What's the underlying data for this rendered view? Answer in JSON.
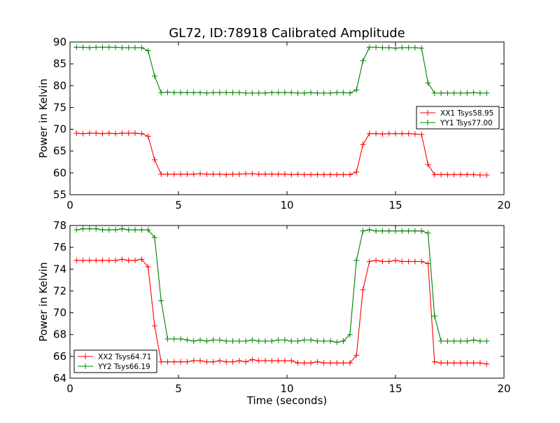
{
  "figure": {
    "title": "GL72, ID:78918 Calibrated Amplitude"
  },
  "chart_data": [
    {
      "type": "line",
      "title": "GL72, ID:78918 Calibrated Amplitude",
      "xlabel": "",
      "ylabel": "Power in Kelvin",
      "xlim": [
        0,
        20
      ],
      "ylim": [
        55,
        90
      ],
      "xticks": [
        0,
        5,
        10,
        15,
        20
      ],
      "yticks": [
        55,
        60,
        65,
        70,
        75,
        80,
        85,
        90
      ],
      "grid": false,
      "legend_position": "center-right",
      "marker": "+",
      "x": [
        0.3,
        0.6,
        0.9,
        1.2,
        1.5,
        1.8,
        2.1,
        2.4,
        2.7,
        3.0,
        3.3,
        3.6,
        3.9,
        4.2,
        4.5,
        4.8,
        5.1,
        5.4,
        5.7,
        6.0,
        6.3,
        6.6,
        6.9,
        7.2,
        7.5,
        7.8,
        8.1,
        8.4,
        8.7,
        9.0,
        9.3,
        9.6,
        9.9,
        10.2,
        10.5,
        10.8,
        11.1,
        11.4,
        11.7,
        12.0,
        12.3,
        12.6,
        12.9,
        13.2,
        13.5,
        13.8,
        14.1,
        14.4,
        14.7,
        15.0,
        15.3,
        15.6,
        15.9,
        16.2,
        16.5,
        16.8,
        17.1,
        17.4,
        17.7,
        18.0,
        18.3,
        18.6,
        18.9,
        19.2
      ],
      "series": [
        {
          "name": "XX1 Tsys58.95",
          "color": "#ff0000",
          "values": [
            69.1,
            69.0,
            69.1,
            69.1,
            69.0,
            69.1,
            69.0,
            69.1,
            69.1,
            69.1,
            69.0,
            68.4,
            63.0,
            59.7,
            59.7,
            59.7,
            59.7,
            59.7,
            59.7,
            59.8,
            59.7,
            59.7,
            59.7,
            59.6,
            59.7,
            59.7,
            59.8,
            59.8,
            59.7,
            59.7,
            59.7,
            59.7,
            59.7,
            59.6,
            59.7,
            59.6,
            59.6,
            59.6,
            59.6,
            59.6,
            59.6,
            59.6,
            59.6,
            60.2,
            66.5,
            69.0,
            69.0,
            68.9,
            69.0,
            69.0,
            69.0,
            69.0,
            68.9,
            68.8,
            61.9,
            59.6,
            59.6,
            59.6,
            59.6,
            59.6,
            59.6,
            59.6,
            59.5,
            59.5
          ]
        },
        {
          "name": "YY1 Tsys77.00",
          "color": "#008000",
          "values": [
            88.8,
            88.8,
            88.7,
            88.8,
            88.8,
            88.8,
            88.8,
            88.7,
            88.7,
            88.7,
            88.7,
            88.0,
            82.2,
            78.4,
            78.5,
            78.4,
            78.4,
            78.4,
            78.4,
            78.4,
            78.3,
            78.4,
            78.4,
            78.4,
            78.4,
            78.4,
            78.3,
            78.3,
            78.3,
            78.3,
            78.4,
            78.4,
            78.4,
            78.4,
            78.3,
            78.3,
            78.4,
            78.3,
            78.3,
            78.3,
            78.4,
            78.4,
            78.3,
            79.0,
            85.7,
            88.8,
            88.8,
            88.7,
            88.7,
            88.6,
            88.7,
            88.7,
            88.7,
            88.6,
            80.6,
            78.3,
            78.3,
            78.3,
            78.3,
            78.3,
            78.3,
            78.4,
            78.3,
            78.3
          ]
        }
      ]
    },
    {
      "type": "line",
      "title": "",
      "xlabel": "Time (seconds)",
      "ylabel": "Power in Kelvin",
      "xlim": [
        0,
        20
      ],
      "ylim": [
        64,
        78
      ],
      "xticks": [
        0,
        5,
        10,
        15,
        20
      ],
      "yticks": [
        64,
        66,
        68,
        70,
        72,
        74,
        76,
        78
      ],
      "grid": false,
      "legend_position": "lower-left",
      "marker": "+",
      "x": [
        0.3,
        0.6,
        0.9,
        1.2,
        1.5,
        1.8,
        2.1,
        2.4,
        2.7,
        3.0,
        3.3,
        3.6,
        3.9,
        4.2,
        4.5,
        4.8,
        5.1,
        5.4,
        5.7,
        6.0,
        6.3,
        6.6,
        6.9,
        7.2,
        7.5,
        7.8,
        8.1,
        8.4,
        8.7,
        9.0,
        9.3,
        9.6,
        9.9,
        10.2,
        10.5,
        10.8,
        11.1,
        11.4,
        11.7,
        12.0,
        12.3,
        12.6,
        12.9,
        13.2,
        13.5,
        13.8,
        14.1,
        14.4,
        14.7,
        15.0,
        15.3,
        15.6,
        15.9,
        16.2,
        16.5,
        16.8,
        17.1,
        17.4,
        17.7,
        18.0,
        18.3,
        18.6,
        18.9,
        19.2
      ],
      "series": [
        {
          "name": "XX2 Tsys64.71",
          "color": "#ff0000",
          "values": [
            74.8,
            74.8,
            74.8,
            74.8,
            74.8,
            74.8,
            74.8,
            74.9,
            74.8,
            74.8,
            74.9,
            74.2,
            68.8,
            65.5,
            65.5,
            65.5,
            65.5,
            65.5,
            65.6,
            65.6,
            65.5,
            65.5,
            65.6,
            65.5,
            65.5,
            65.6,
            65.5,
            65.7,
            65.6,
            65.6,
            65.6,
            65.6,
            65.6,
            65.6,
            65.4,
            65.4,
            65.4,
            65.5,
            65.4,
            65.4,
            65.4,
            65.4,
            65.4,
            66.1,
            72.1,
            74.7,
            74.8,
            74.7,
            74.7,
            74.8,
            74.7,
            74.7,
            74.7,
            74.7,
            74.5,
            65.5,
            65.4,
            65.4,
            65.4,
            65.4,
            65.4,
            65.4,
            65.4,
            65.3
          ]
        },
        {
          "name": "YY2 Tsys66.19",
          "color": "#008000",
          "values": [
            77.6,
            77.7,
            77.7,
            77.7,
            77.6,
            77.6,
            77.6,
            77.7,
            77.6,
            77.6,
            77.6,
            77.6,
            76.9,
            71.1,
            67.6,
            67.6,
            67.6,
            67.5,
            67.4,
            67.5,
            67.4,
            67.5,
            67.5,
            67.4,
            67.4,
            67.4,
            67.4,
            67.5,
            67.4,
            67.4,
            67.4,
            67.5,
            67.5,
            67.4,
            67.4,
            67.5,
            67.5,
            67.4,
            67.4,
            67.4,
            67.3,
            67.4,
            68.0,
            74.8,
            77.5,
            77.6,
            77.5,
            77.5,
            77.5,
            77.5,
            77.5,
            77.5,
            77.5,
            77.5,
            77.3,
            69.7,
            67.4,
            67.4,
            67.4,
            67.4,
            67.4,
            67.5,
            67.4,
            67.4
          ]
        }
      ]
    }
  ]
}
